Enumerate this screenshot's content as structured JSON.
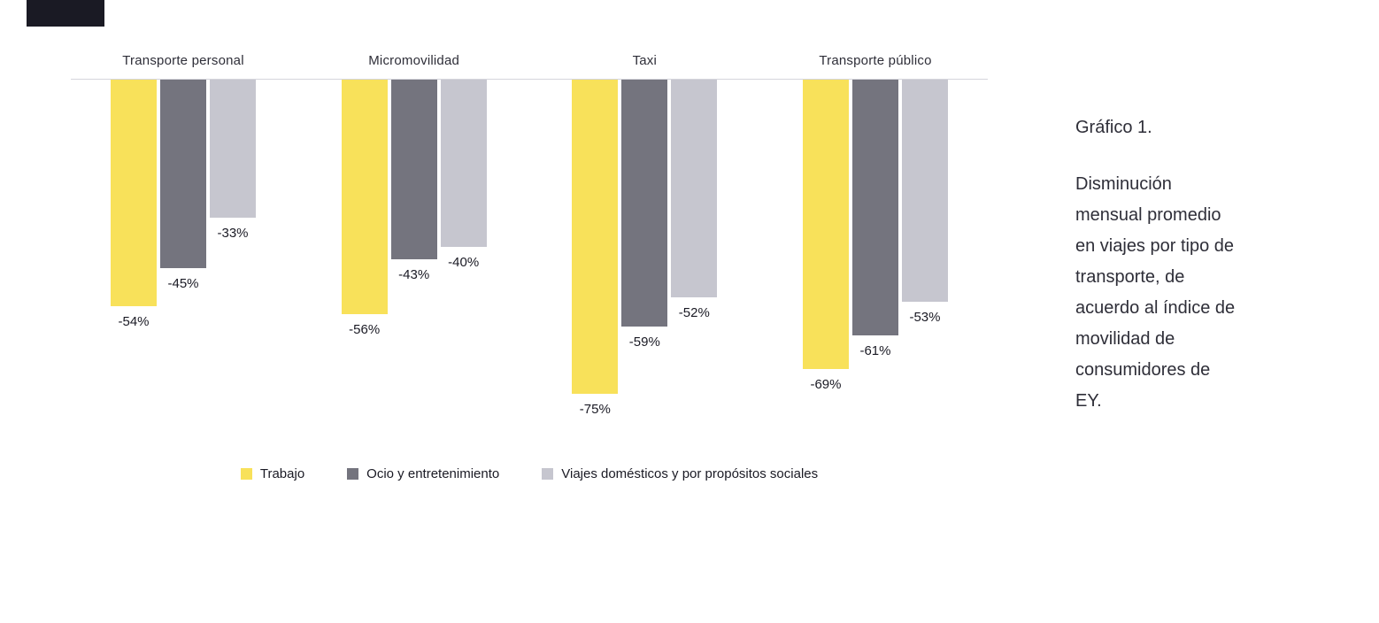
{
  "logo": {
    "color": "#1a1a24"
  },
  "chart_data": {
    "type": "bar",
    "orientation": "vertical-down-from-zero-baseline",
    "categories": [
      "Transporte personal",
      "Micromovilidad",
      "Taxi",
      "Transporte público"
    ],
    "series": [
      {
        "name": "Trabajo",
        "color": "#F8E15A",
        "values": [
          -54,
          -56,
          -75,
          -69
        ]
      },
      {
        "name": "Ocio y entretenimiento",
        "color": "#74747E",
        "values": [
          -45,
          -43,
          -59,
          -61
        ]
      },
      {
        "name": "Viajes domésticos y por propósitos sociales",
        "color": "#C6C6CF",
        "values": [
          -33,
          -40,
          -52,
          -53
        ]
      }
    ],
    "value_suffix": "%",
    "ylim": [
      -80,
      0
    ],
    "grid": false,
    "axis_line_color": "#d5d5dc",
    "legend_position": "bottom-center",
    "data_labels": "below-bar"
  },
  "caption": {
    "title": "Gráfico 1.",
    "body": "Disminución mensual promedio en viajes por tipo de transporte, de acuerdo al índice de movilidad de consumidores de EY."
  }
}
